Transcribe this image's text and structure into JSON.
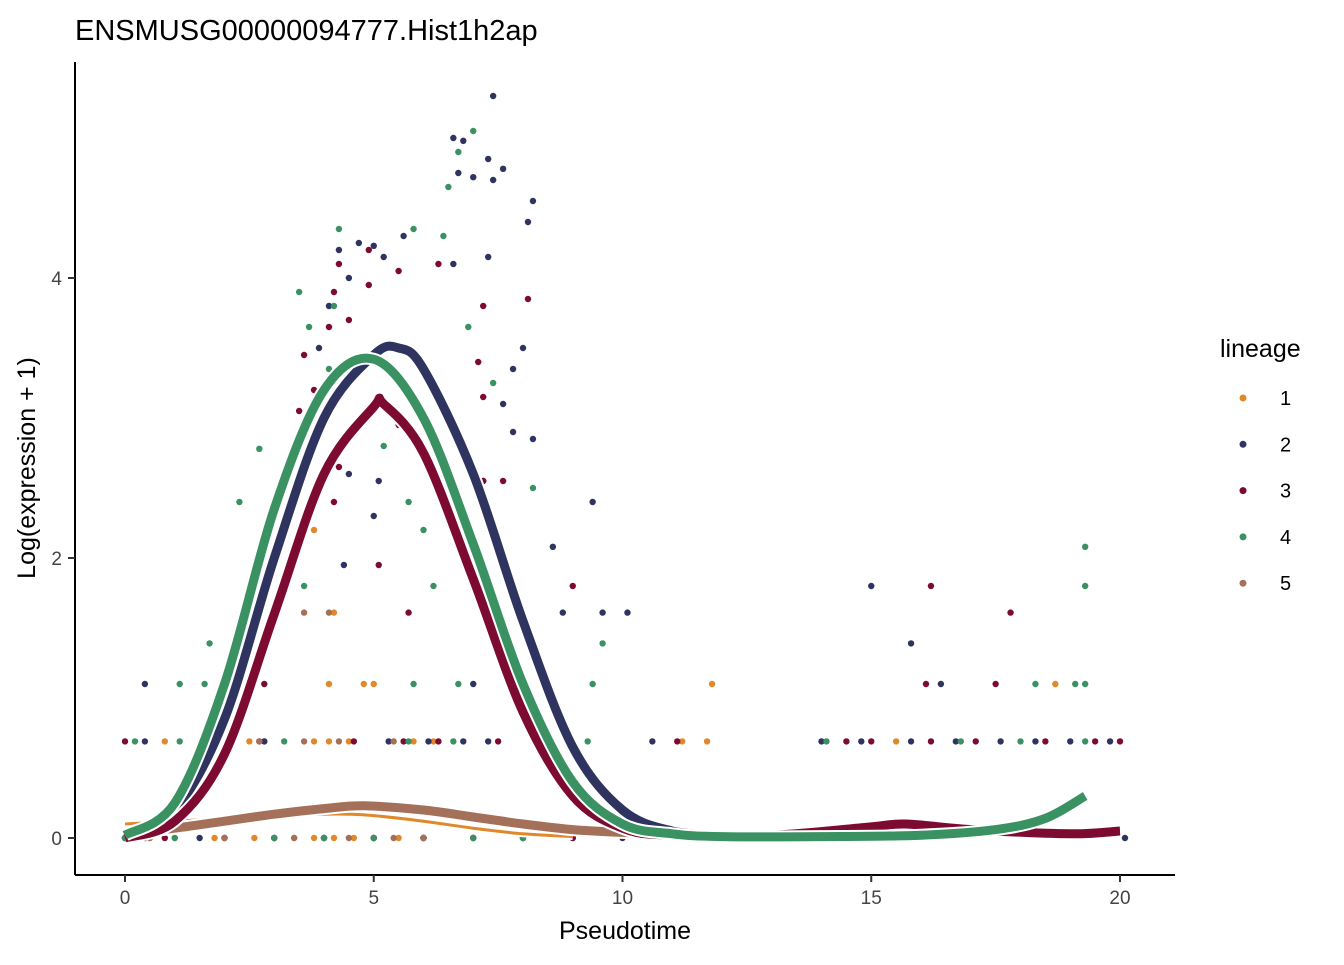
{
  "chart_data": {
    "type": "scatter",
    "title": "ENSMUSG00000094777.Hist1h2ap",
    "xlabel": "Pseudotime",
    "ylabel": "Log(expression + 1)",
    "xlim": [
      -1,
      21.1
    ],
    "ylim": [
      -0.27,
      5.45
    ],
    "xticks": [
      0,
      5,
      10,
      15,
      20
    ],
    "yticks": [
      0,
      2,
      4
    ],
    "grid": false,
    "legend": {
      "title": "lineage",
      "position": "right",
      "entries": [
        {
          "label": "1",
          "color": "#E0892B"
        },
        {
          "label": "2",
          "color": "#2F335F"
        },
        {
          "label": "3",
          "color": "#7D0A30"
        },
        {
          "label": "4",
          "color": "#3A9161"
        },
        {
          "label": "5",
          "color": "#A4705A"
        }
      ]
    },
    "series": [
      {
        "name": "1",
        "color": "#E0892B",
        "points": [
          [
            0,
            0
          ],
          [
            0.5,
            0
          ],
          [
            1,
            0
          ],
          [
            1.8,
            0
          ],
          [
            2.6,
            0
          ],
          [
            3,
            0
          ],
          [
            3.4,
            0
          ],
          [
            3.8,
            0
          ],
          [
            4.2,
            0
          ],
          [
            4.6,
            0
          ],
          [
            5,
            0
          ],
          [
            5.5,
            0
          ],
          [
            6,
            0
          ],
          [
            0.8,
            0.69
          ],
          [
            2.5,
            0.69
          ],
          [
            2.8,
            0.69
          ],
          [
            3.8,
            0.69
          ],
          [
            4.1,
            0.69
          ],
          [
            4.5,
            0.69
          ],
          [
            5.8,
            0.69
          ],
          [
            6.2,
            0.69
          ],
          [
            11.2,
            0.69
          ],
          [
            11.7,
            0.69
          ],
          [
            15.5,
            0.69
          ],
          [
            4.1,
            1.1
          ],
          [
            4.8,
            1.1
          ],
          [
            5,
            1.1
          ],
          [
            11.8,
            1.1
          ],
          [
            18.7,
            1.1
          ],
          [
            4.2,
            1.61
          ],
          [
            3.8,
            2.2
          ]
        ],
        "curve": [
          [
            0,
            0.1
          ],
          [
            1,
            0.12
          ],
          [
            2,
            0.14
          ],
          [
            3,
            0.16
          ],
          [
            4,
            0.17
          ],
          [
            4.5,
            0.17
          ],
          [
            5,
            0.16
          ],
          [
            6,
            0.12
          ],
          [
            7,
            0.07
          ],
          [
            8,
            0.03
          ],
          [
            9,
            0.01
          ]
        ]
      },
      {
        "name": "2",
        "color": "#2F335F",
        "points": [
          [
            0,
            0
          ],
          [
            0.4,
            0
          ],
          [
            1.5,
            0
          ],
          [
            3,
            0
          ],
          [
            4,
            0
          ],
          [
            5,
            0
          ],
          [
            6,
            0
          ],
          [
            7,
            0
          ],
          [
            8,
            0
          ],
          [
            9,
            0
          ],
          [
            10,
            0
          ],
          [
            20.1,
            0
          ],
          [
            0.4,
            0.69
          ],
          [
            2.8,
            0.69
          ],
          [
            5.3,
            0.69
          ],
          [
            6.1,
            0.69
          ],
          [
            6.8,
            0.69
          ],
          [
            7.3,
            0.69
          ],
          [
            8.9,
            0.69
          ],
          [
            10.6,
            0.69
          ],
          [
            14,
            0.69
          ],
          [
            14.8,
            0.69
          ],
          [
            15.8,
            0.69
          ],
          [
            16.7,
            0.69
          ],
          [
            17.6,
            0.69
          ],
          [
            18.3,
            0.69
          ],
          [
            19,
            0.69
          ],
          [
            19.8,
            0.69
          ],
          [
            0.4,
            1.1
          ],
          [
            7,
            1.1
          ],
          [
            16.4,
            1.1
          ],
          [
            8.8,
            1.61
          ],
          [
            9.6,
            1.61
          ],
          [
            10.1,
            1.61
          ],
          [
            15,
            1.8
          ],
          [
            15.8,
            1.39
          ],
          [
            4.4,
            1.95
          ],
          [
            8.6,
            2.08
          ],
          [
            9.4,
            2.4
          ],
          [
            5,
            2.3
          ],
          [
            4.5,
            2.6
          ],
          [
            5.1,
            2.55
          ],
          [
            7.2,
            2.55
          ],
          [
            7.8,
            2.9
          ],
          [
            8.2,
            2.85
          ],
          [
            7.6,
            3.1
          ],
          [
            7.8,
            3.35
          ],
          [
            8,
            3.5
          ],
          [
            5.4,
            3.35
          ],
          [
            4.1,
            3.8
          ],
          [
            4.5,
            4.0
          ],
          [
            4.3,
            4.2
          ],
          [
            4.7,
            4.25
          ],
          [
            5,
            4.23
          ],
          [
            5.2,
            4.15
          ],
          [
            5.6,
            4.3
          ],
          [
            6.6,
            4.1
          ],
          [
            7.3,
            4.15
          ],
          [
            8.1,
            4.4
          ],
          [
            8.2,
            4.55
          ],
          [
            6.7,
            4.75
          ],
          [
            7.0,
            4.72
          ],
          [
            7.4,
            4.7
          ],
          [
            7.6,
            4.78
          ],
          [
            7.3,
            4.85
          ],
          [
            6.8,
            4.98
          ],
          [
            6.6,
            5.0
          ],
          [
            7.4,
            5.3
          ],
          [
            3.9,
            3.5
          ]
        ],
        "curve": [
          [
            0,
            0.03
          ],
          [
            1,
            0.2
          ],
          [
            2,
            0.85
          ],
          [
            3,
            2.0
          ],
          [
            4,
            3.0
          ],
          [
            5,
            3.45
          ],
          [
            5.5,
            3.5
          ],
          [
            6,
            3.35
          ],
          [
            7,
            2.6
          ],
          [
            8,
            1.55
          ],
          [
            9,
            0.65
          ],
          [
            10,
            0.2
          ],
          [
            11,
            0.05
          ],
          [
            12,
            0.02
          ]
        ]
      },
      {
        "name": "3",
        "color": "#7D0A30",
        "points": [
          [
            0,
            0
          ],
          [
            0.8,
            0
          ],
          [
            2,
            0
          ],
          [
            3,
            0
          ],
          [
            4,
            0
          ],
          [
            5,
            0
          ],
          [
            6,
            0
          ],
          [
            7,
            0
          ],
          [
            8,
            0
          ],
          [
            9,
            0
          ],
          [
            0,
            0.69
          ],
          [
            1.7,
            0.69
          ],
          [
            2.7,
            0.69
          ],
          [
            4.6,
            0.69
          ],
          [
            5.6,
            0.69
          ],
          [
            6.3,
            0.69
          ],
          [
            7.5,
            0.69
          ],
          [
            11.1,
            0.69
          ],
          [
            14.5,
            0.69
          ],
          [
            15,
            0.69
          ],
          [
            16.2,
            0.69
          ],
          [
            17.1,
            0.69
          ],
          [
            18.5,
            0.69
          ],
          [
            19.5,
            0.69
          ],
          [
            20,
            0.69
          ],
          [
            2.8,
            1.1
          ],
          [
            16.1,
            1.1
          ],
          [
            17.5,
            1.1
          ],
          [
            5.7,
            1.61
          ],
          [
            17.8,
            1.61
          ],
          [
            16.2,
            1.8
          ],
          [
            9,
            1.8
          ],
          [
            5.1,
            1.95
          ],
          [
            4.2,
            2.4
          ],
          [
            4.3,
            2.65
          ],
          [
            7.2,
            2.55
          ],
          [
            3.5,
            3.05
          ],
          [
            3.8,
            3.2
          ],
          [
            3.6,
            3.45
          ],
          [
            4.1,
            3.65
          ],
          [
            4.5,
            3.7
          ],
          [
            4.2,
            3.9
          ],
          [
            4.9,
            3.95
          ],
          [
            4.3,
            4.1
          ],
          [
            4.9,
            4.2
          ],
          [
            5.5,
            4.05
          ],
          [
            6.3,
            4.1
          ],
          [
            7.1,
            3.4
          ],
          [
            7.2,
            3.8
          ],
          [
            8.1,
            3.85
          ],
          [
            7.2,
            3.15
          ],
          [
            7.6,
            2.55
          ],
          [
            5.5,
            2.95
          ]
        ],
        "curve": [
          [
            0,
            0
          ],
          [
            1,
            0.12
          ],
          [
            2,
            0.6
          ],
          [
            3,
            1.6
          ],
          [
            4,
            2.6
          ],
          [
            5,
            3.08
          ],
          [
            5.2,
            3.1
          ],
          [
            6,
            2.75
          ],
          [
            7,
            1.85
          ],
          [
            8,
            0.9
          ],
          [
            9,
            0.3
          ],
          [
            10,
            0.07
          ],
          [
            11,
            0.02
          ],
          [
            13,
            0.02
          ],
          [
            15,
            0.08
          ],
          [
            15.7,
            0.1
          ],
          [
            17,
            0.06
          ],
          [
            19,
            0.03
          ],
          [
            20,
            0.05
          ]
        ]
      },
      {
        "name": "4",
        "color": "#3A9161",
        "points": [
          [
            0,
            0
          ],
          [
            1,
            0
          ],
          [
            2,
            0
          ],
          [
            3,
            0
          ],
          [
            4,
            0
          ],
          [
            5,
            0
          ],
          [
            6,
            0
          ],
          [
            7,
            0
          ],
          [
            8,
            0
          ],
          [
            0.2,
            0.69
          ],
          [
            1.1,
            0.69
          ],
          [
            3.2,
            0.69
          ],
          [
            5.7,
            0.69
          ],
          [
            6.6,
            0.69
          ],
          [
            9.3,
            0.69
          ],
          [
            14.1,
            0.69
          ],
          [
            16.8,
            0.69
          ],
          [
            18,
            0.69
          ],
          [
            19.3,
            0.69
          ],
          [
            1.1,
            1.1
          ],
          [
            1.6,
            1.1
          ],
          [
            6.7,
            1.1
          ],
          [
            5.8,
            1.1
          ],
          [
            9.4,
            1.1
          ],
          [
            18.3,
            1.1
          ],
          [
            19.1,
            1.1
          ],
          [
            19.3,
            1.1
          ],
          [
            1.7,
            1.39
          ],
          [
            9.6,
            1.39
          ],
          [
            6.2,
            1.8
          ],
          [
            3.6,
            1.8
          ],
          [
            19.3,
            1.8
          ],
          [
            19.3,
            2.08
          ],
          [
            2.3,
            2.4
          ],
          [
            5.7,
            2.4
          ],
          [
            6,
            2.2
          ],
          [
            2.7,
            2.78
          ],
          [
            3.4,
            2.7
          ],
          [
            7.3,
            2.3
          ],
          [
            5.2,
            2.8
          ],
          [
            4.1,
            3.35
          ],
          [
            3.7,
            3.65
          ],
          [
            3.5,
            3.9
          ],
          [
            4.2,
            3.8
          ],
          [
            4.3,
            4.35
          ],
          [
            5.8,
            4.35
          ],
          [
            6.4,
            4.3
          ],
          [
            6.7,
            4.9
          ],
          [
            7.0,
            5.05
          ],
          [
            6.5,
            4.65
          ],
          [
            6.9,
            3.65
          ],
          [
            5.2,
            3.5
          ],
          [
            7.4,
            3.25
          ],
          [
            8.2,
            2.5
          ]
        ],
        "curve": [
          [
            0,
            0.02
          ],
          [
            1,
            0.25
          ],
          [
            2,
            1.1
          ],
          [
            3,
            2.35
          ],
          [
            4,
            3.2
          ],
          [
            5,
            3.42
          ],
          [
            6,
            3.0
          ],
          [
            7,
            2.1
          ],
          [
            8,
            1.1
          ],
          [
            9,
            0.4
          ],
          [
            10,
            0.1
          ],
          [
            11,
            0.03
          ],
          [
            12,
            0.01
          ],
          [
            14,
            0.01
          ],
          [
            16,
            0.02
          ],
          [
            17.5,
            0.06
          ],
          [
            18.5,
            0.14
          ],
          [
            19.3,
            0.3
          ]
        ]
      },
      {
        "name": "5",
        "color": "#A4705A",
        "points": [
          [
            0.5,
            0
          ],
          [
            2,
            0
          ],
          [
            3.4,
            0
          ],
          [
            4.5,
            0
          ],
          [
            5.4,
            0
          ],
          [
            6,
            0
          ],
          [
            2.7,
            0.69
          ],
          [
            3.6,
            0.69
          ],
          [
            4.3,
            0.69
          ],
          [
            5.4,
            0.69
          ],
          [
            3.6,
            1.61
          ],
          [
            4.1,
            1.61
          ]
        ],
        "curve": [
          [
            0,
            0.03
          ],
          [
            1,
            0.07
          ],
          [
            2,
            0.12
          ],
          [
            3,
            0.17
          ],
          [
            4,
            0.21
          ],
          [
            4.8,
            0.23
          ],
          [
            6,
            0.2
          ],
          [
            7,
            0.15
          ],
          [
            8,
            0.1
          ],
          [
            9,
            0.06
          ],
          [
            10,
            0.04
          ],
          [
            11,
            0.03
          ],
          [
            11.8,
            0.03
          ]
        ]
      }
    ]
  }
}
